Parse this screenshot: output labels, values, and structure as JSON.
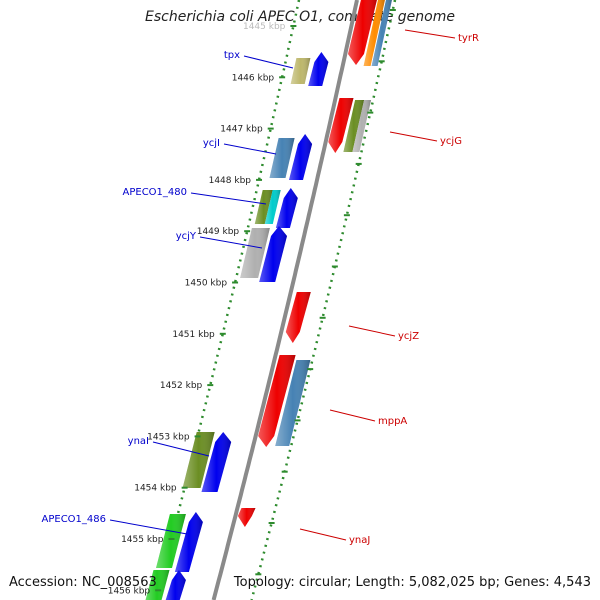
{
  "title": "Escherichia coli APEC O1, complete genome",
  "accession": "Accession: NC_008563",
  "topology": "Topology: circular; Length: 5,082,025 bp; Genes: 4,543",
  "scale_ticks": [
    "1445 kbp",
    "1446 kbp",
    "1447 kbp",
    "1448 kbp",
    "1449 kbp",
    "1450 kbp",
    "1451 kbp",
    "1452 kbp",
    "1453 kbp",
    "1454 kbp",
    "1455 kbp",
    "1456 kbp"
  ],
  "genes_minus": [
    {
      "label": "tpx"
    },
    {
      "label": "ycjI"
    },
    {
      "label": "APECO1_480"
    },
    {
      "label": "ycjY"
    },
    {
      "label": "ynaI"
    },
    {
      "label": "APECO1_486"
    }
  ],
  "genes_plus": [
    {
      "label": "tyrR"
    },
    {
      "label": "ycjG"
    },
    {
      "label": "ycjZ"
    },
    {
      "label": "mppA"
    },
    {
      "label": "ynaJ"
    }
  ],
  "colors": {
    "backbone": "#8a8a8a",
    "dots": "#2e8b2e",
    "minus_label": "#0000cc",
    "plus_label": "#cc0000",
    "blue": "#0000ee",
    "red": "#ee0000",
    "steel": "#4682b4",
    "olive": "#6b8e23",
    "khaki": "#bdb76b",
    "gray": "#b0b0b0",
    "green": "#22cc22",
    "cyan": "#00cccc",
    "orange": "#ff8c00"
  }
}
